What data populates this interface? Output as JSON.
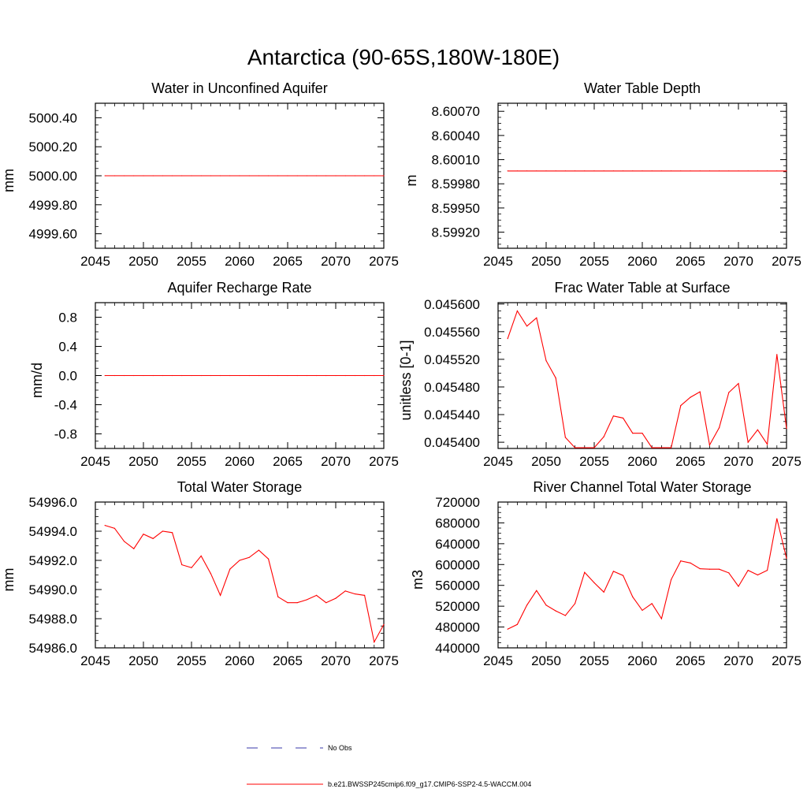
{
  "title": "Antarctica (90-65S,180W-180E)",
  "colors": {
    "model_line": "#ff0000",
    "obs_line": "#3a3aa8"
  },
  "legend": {
    "obs_label": "No Obs",
    "model_label": "b.e21.BWSSP245cmip6.f09_g17.CMIP6-SSP2-4.5-WACCM.004"
  },
  "chart_data": [
    {
      "type": "line",
      "title": "Water in Unconfined Aquifer",
      "ylabel": "mm",
      "xlim": [
        2045,
        2075
      ],
      "ylim": [
        4999.5,
        5000.5
      ],
      "xticks": [
        2045,
        2050,
        2055,
        2060,
        2065,
        2070,
        2075
      ],
      "xtick_labels": [
        "2045",
        "2050",
        "2055",
        "2060",
        "2065",
        "2070",
        "2075"
      ],
      "yticks": [
        4999.6,
        4999.8,
        5000.0,
        5000.2,
        5000.4
      ],
      "ytick_labels": [
        "4999.60",
        "4999.80",
        "5000.00",
        "5000.20",
        "5000.40"
      ],
      "x": [
        2046,
        2047,
        2048,
        2049,
        2050,
        2051,
        2052,
        2053,
        2054,
        2055,
        2056,
        2057,
        2058,
        2059,
        2060,
        2061,
        2062,
        2063,
        2064,
        2065,
        2066,
        2067,
        2068,
        2069,
        2070,
        2071,
        2072,
        2073,
        2074,
        2075
      ],
      "values": [
        5000,
        5000,
        5000,
        5000,
        5000,
        5000,
        5000,
        5000,
        5000,
        5000,
        5000,
        5000,
        5000,
        5000,
        5000,
        5000,
        5000,
        5000,
        5000,
        5000,
        5000,
        5000,
        5000,
        5000,
        5000,
        5000,
        5000,
        5000,
        5000,
        5000
      ]
    },
    {
      "type": "line",
      "title": "Water Table Depth",
      "ylabel": "m",
      "xlim": [
        2045,
        2075
      ],
      "ylim": [
        8.599,
        8.6008
      ],
      "xticks": [
        2045,
        2050,
        2055,
        2060,
        2065,
        2070,
        2075
      ],
      "xtick_labels": [
        "2045",
        "2050",
        "2055",
        "2060",
        "2065",
        "2070",
        "2075"
      ],
      "yticks": [
        8.5992,
        8.5995,
        8.5998,
        8.6001,
        8.6004,
        8.6007
      ],
      "ytick_labels": [
        "8.59920",
        "8.59950",
        "8.59980",
        "8.60010",
        "8.60040",
        "8.60070"
      ],
      "x": [
        2046,
        2047,
        2048,
        2049,
        2050,
        2051,
        2052,
        2053,
        2054,
        2055,
        2056,
        2057,
        2058,
        2059,
        2060,
        2061,
        2062,
        2063,
        2064,
        2065,
        2066,
        2067,
        2068,
        2069,
        2070,
        2071,
        2072,
        2073,
        2074,
        2075
      ],
      "values": [
        8.59996,
        8.59996,
        8.59996,
        8.59996,
        8.59996,
        8.59996,
        8.59996,
        8.59996,
        8.59996,
        8.59996,
        8.59996,
        8.59996,
        8.59996,
        8.59996,
        8.59996,
        8.59996,
        8.59996,
        8.59996,
        8.59996,
        8.59996,
        8.59996,
        8.59996,
        8.59996,
        8.59996,
        8.59996,
        8.59996,
        8.59996,
        8.59996,
        8.59996,
        8.59996
      ]
    },
    {
      "type": "line",
      "title": "Aquifer Recharge Rate",
      "ylabel": "mm/d",
      "xlim": [
        2045,
        2075
      ],
      "ylim": [
        -1.0,
        1.0
      ],
      "xticks": [
        2045,
        2050,
        2055,
        2060,
        2065,
        2070,
        2075
      ],
      "xtick_labels": [
        "2045",
        "2050",
        "2055",
        "2060",
        "2065",
        "2070",
        "2075"
      ],
      "yticks": [
        -0.8,
        -0.4,
        0.0,
        0.4,
        0.8
      ],
      "ytick_labels": [
        "-0.8",
        "-0.4",
        "0.0",
        "0.4",
        "0.8"
      ],
      "x": [
        2046,
        2047,
        2048,
        2049,
        2050,
        2051,
        2052,
        2053,
        2054,
        2055,
        2056,
        2057,
        2058,
        2059,
        2060,
        2061,
        2062,
        2063,
        2064,
        2065,
        2066,
        2067,
        2068,
        2069,
        2070,
        2071,
        2072,
        2073,
        2074,
        2075
      ],
      "values": [
        0,
        0,
        0,
        0,
        0,
        0,
        0,
        0,
        0,
        0,
        0,
        0,
        0,
        0,
        0,
        0,
        0,
        0,
        0,
        0,
        0,
        0,
        0,
        0,
        0,
        0,
        0,
        0,
        0,
        0
      ]
    },
    {
      "type": "line",
      "title": "Frac Water Table at Surface",
      "ylabel": "unitless [0-1]",
      "xlim": [
        2045,
        2075
      ],
      "ylim": [
        0.045391,
        0.045602
      ],
      "xticks": [
        2045,
        2050,
        2055,
        2060,
        2065,
        2070,
        2075
      ],
      "xtick_labels": [
        "2045",
        "2050",
        "2055",
        "2060",
        "2065",
        "2070",
        "2075"
      ],
      "yticks": [
        0.0454,
        0.04544,
        0.04548,
        0.04552,
        0.04556,
        0.0456
      ],
      "ytick_labels": [
        "0.045400",
        "0.045440",
        "0.045480",
        "0.045520",
        "0.045560",
        "0.045600"
      ],
      "x": [
        2046,
        2047,
        2048,
        2049,
        2050,
        2051,
        2052,
        2053,
        2054,
        2055,
        2056,
        2057,
        2058,
        2059,
        2060,
        2061,
        2062,
        2063,
        2064,
        2065,
        2066,
        2067,
        2068,
        2069,
        2070,
        2071,
        2072,
        2073,
        2074,
        2075
      ],
      "values": [
        0.04555,
        0.04559,
        0.045568,
        0.04558,
        0.045518,
        0.045493,
        0.045407,
        0.045392,
        0.045392,
        0.045392,
        0.045408,
        0.045438,
        0.045435,
        0.045413,
        0.045413,
        0.045392,
        0.045392,
        0.045392,
        0.045453,
        0.045465,
        0.045473,
        0.045396,
        0.045421,
        0.045472,
        0.045485,
        0.0454,
        0.045418,
        0.045397,
        0.045527,
        0.04542
      ]
    },
    {
      "type": "line",
      "title": "Total Water Storage",
      "ylabel": "mm",
      "xlim": [
        2045,
        2075
      ],
      "ylim": [
        54986.0,
        54996.0
      ],
      "xticks": [
        2045,
        2050,
        2055,
        2060,
        2065,
        2070,
        2075
      ],
      "xtick_labels": [
        "2045",
        "2050",
        "2055",
        "2060",
        "2065",
        "2070",
        "2075"
      ],
      "yticks": [
        54986.0,
        54988.0,
        54990.0,
        54992.0,
        54994.0,
        54996.0
      ],
      "ytick_labels": [
        "54986.0",
        "54988.0",
        "54990.0",
        "54992.0",
        "54994.0",
        "54996.0"
      ],
      "x": [
        2046,
        2047,
        2048,
        2049,
        2050,
        2051,
        2052,
        2053,
        2054,
        2055,
        2056,
        2057,
        2058,
        2059,
        2060,
        2061,
        2062,
        2063,
        2064,
        2065,
        2066,
        2067,
        2068,
        2069,
        2070,
        2071,
        2072,
        2073,
        2074,
        2075
      ],
      "values": [
        54994.4,
        54994.2,
        54993.3,
        54992.8,
        54993.8,
        54993.5,
        54994.0,
        54993.9,
        54991.7,
        54991.5,
        54992.3,
        54991.1,
        54989.6,
        54991.4,
        54992.0,
        54992.2,
        54992.7,
        54992.1,
        54989.5,
        54989.1,
        54989.1,
        54989.3,
        54989.6,
        54989.1,
        54989.4,
        54989.9,
        54989.7,
        54989.6,
        54986.4,
        54987.6
      ]
    },
    {
      "type": "line",
      "title": "River Channel Total Water Storage",
      "ylabel": "m3",
      "xlim": [
        2045,
        2075
      ],
      "ylim": [
        440000,
        720000
      ],
      "xticks": [
        2045,
        2050,
        2055,
        2060,
        2065,
        2070,
        2075
      ],
      "xtick_labels": [
        "2045",
        "2050",
        "2055",
        "2060",
        "2065",
        "2070",
        "2075"
      ],
      "yticks": [
        440000,
        480000,
        520000,
        560000,
        600000,
        640000,
        680000,
        720000
      ],
      "ytick_labels": [
        "440000",
        "480000",
        "520000",
        "560000",
        "600000",
        "640000",
        "680000",
        "720000"
      ],
      "x": [
        2046,
        2047,
        2048,
        2049,
        2050,
        2051,
        2052,
        2053,
        2054,
        2055,
        2056,
        2057,
        2058,
        2059,
        2060,
        2061,
        2062,
        2063,
        2064,
        2065,
        2066,
        2067,
        2068,
        2069,
        2070,
        2071,
        2072,
        2073,
        2074,
        2075
      ],
      "values": [
        476000,
        485000,
        522000,
        550000,
        522000,
        511000,
        502000,
        525000,
        585000,
        565000,
        547000,
        587000,
        579000,
        538000,
        512000,
        525000,
        496000,
        571000,
        607000,
        603000,
        592000,
        591000,
        591000,
        584000,
        558000,
        589000,
        580000,
        589000,
        688000,
        612000
      ]
    }
  ]
}
